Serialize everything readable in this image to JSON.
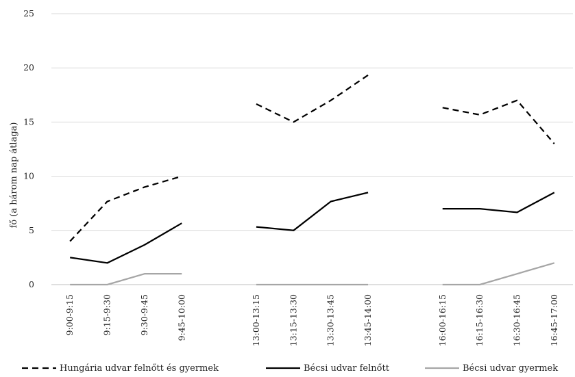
{
  "chart_data": {
    "type": "line",
    "title": "",
    "xlabel": "",
    "ylabel": "fő (a három nap átlaga)",
    "ylim": [
      0,
      25
    ],
    "yticks": [
      0,
      5,
      10,
      15,
      20,
      25
    ],
    "grid": "horizontal",
    "legend_position": "bottom",
    "categories": [
      "9:00-9:15",
      "9:15-9:30",
      "9:30-9:45",
      "9:45-10:00",
      "",
      "13:00-13:15",
      "13:15-13:30",
      "13:30-13:45",
      "13:45-14:00",
      "",
      "16:00-16:15",
      "16:15-16:30",
      "16:30-16:45",
      "16:45-17:00"
    ],
    "series": [
      {
        "name": "Hungária udvar felnőtt és gyermek",
        "style": "dashed",
        "color": "#000000",
        "values": [
          4,
          7.67,
          9,
          10,
          null,
          16.67,
          15,
          17,
          19.33,
          null,
          16.33,
          15.67,
          17,
          13
        ]
      },
      {
        "name": "Bécsi udvar felnőtt",
        "style": "solid",
        "color": "#000000",
        "values": [
          2.5,
          2,
          3.67,
          5.67,
          null,
          5.33,
          5,
          7.67,
          8.5,
          null,
          7,
          7,
          6.67,
          8.5
        ]
      },
      {
        "name": "Bécsi udvar gyermek",
        "style": "solid",
        "color": "#a6a6a6",
        "values": [
          0,
          0,
          1,
          1,
          null,
          0,
          0,
          0,
          0,
          null,
          0,
          0,
          1,
          2
        ]
      }
    ]
  }
}
